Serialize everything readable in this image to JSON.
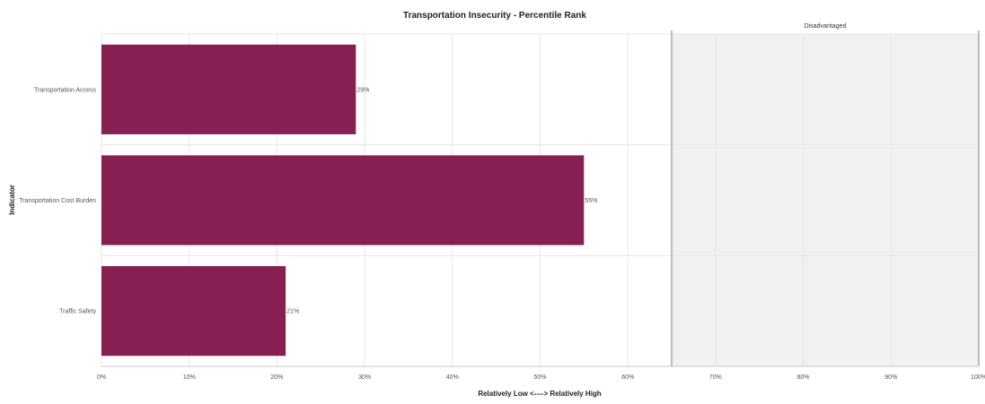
{
  "chart_data": {
    "type": "bar",
    "orientation": "horizontal",
    "title": "Transportation Insecurity - Percentile Rank",
    "xlabel": "Relatively Low <----> Relatively High",
    "ylabel": "Indicator",
    "categories": [
      "Transportation Access",
      "Transportation Cost Burden",
      "Traffic Safety"
    ],
    "values": [
      29,
      55,
      21
    ],
    "data_labels": [
      "29%",
      "55%",
      "21%"
    ],
    "xlim": [
      0,
      100
    ],
    "x_ticks": [
      0,
      10,
      20,
      30,
      40,
      50,
      60,
      70,
      80,
      90,
      100
    ],
    "x_tick_labels": [
      "0%",
      "10%",
      "20%",
      "30%",
      "40%",
      "50%",
      "60%",
      "70%",
      "80%",
      "90%",
      "100%"
    ],
    "grid": true,
    "bar_color": "#872052",
    "threshold_band": {
      "label": "Disadvantaged",
      "from": 65,
      "to": 100,
      "color": "#f1f1f1",
      "border_color": "#bbbbbb"
    }
  }
}
